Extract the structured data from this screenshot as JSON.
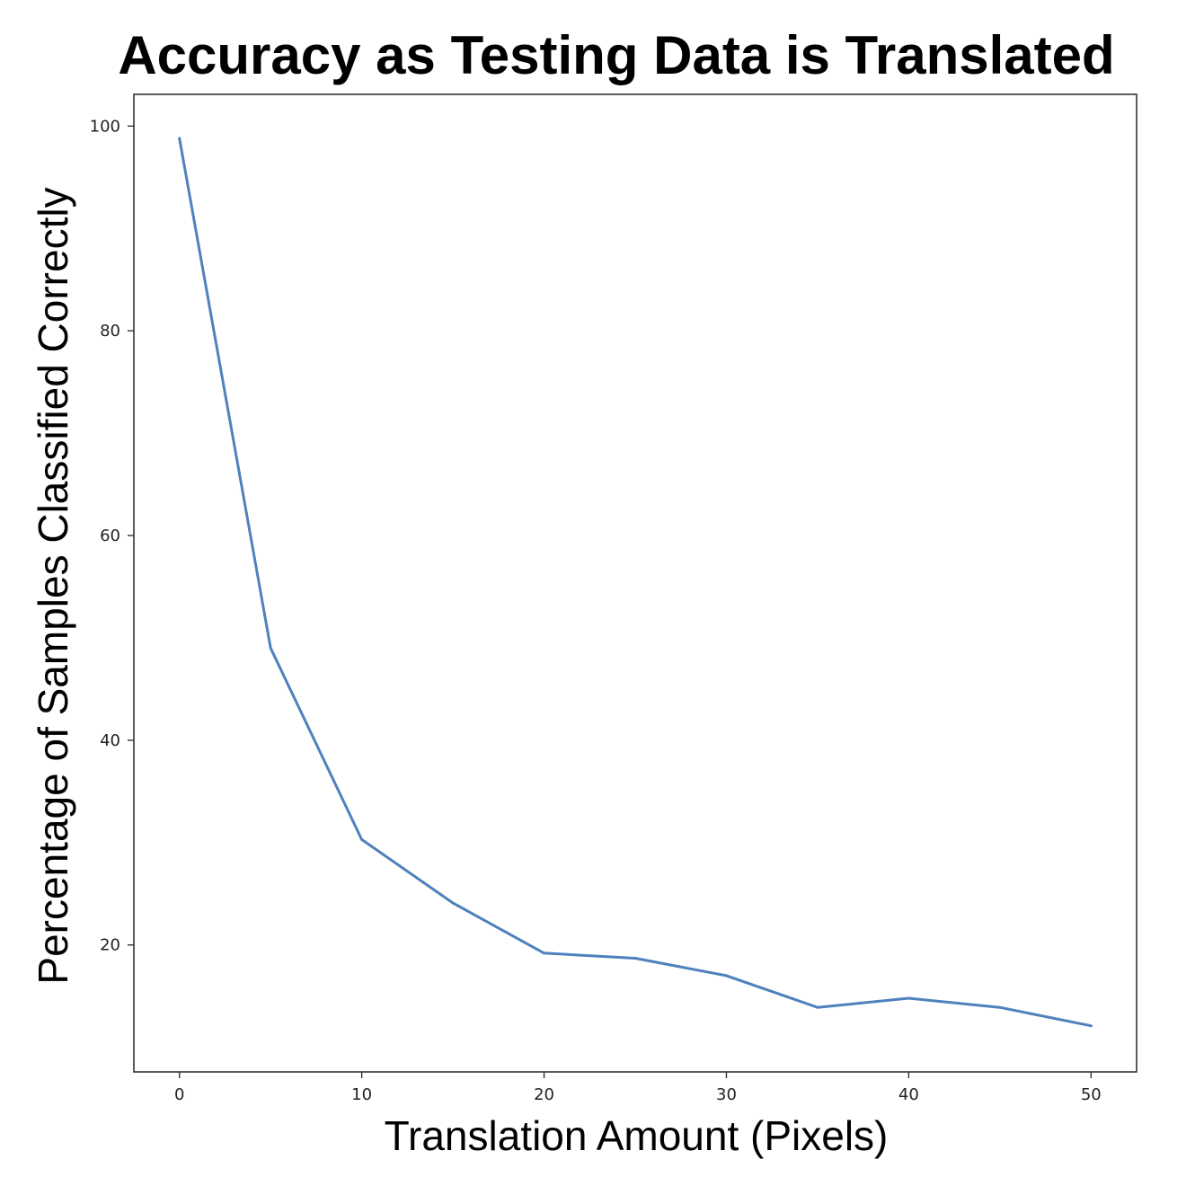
{
  "chart_data": {
    "type": "line",
    "title": "Accuracy as Testing Data is Translated",
    "xlabel": "Translation Amount (Pixels)",
    "ylabel": "Percentage of Samples Classified Correctly",
    "x": [
      0,
      5,
      10,
      15,
      20,
      25,
      30,
      35,
      40,
      45,
      50
    ],
    "series": [
      {
        "values": [
          98.8,
          49.0,
          30.3,
          24.1,
          19.2,
          18.7,
          17.0,
          13.9,
          14.8,
          13.9,
          12.1
        ],
        "color": "#4f81bd"
      }
    ],
    "xlim": [
      -2.5,
      52.5
    ],
    "ylim": [
      7.6,
      103.1
    ],
    "xticks": [
      0,
      10,
      20,
      30,
      40,
      50
    ],
    "yticks": [
      20,
      40,
      60,
      80,
      100
    ],
    "grid": false,
    "legend": "none"
  }
}
